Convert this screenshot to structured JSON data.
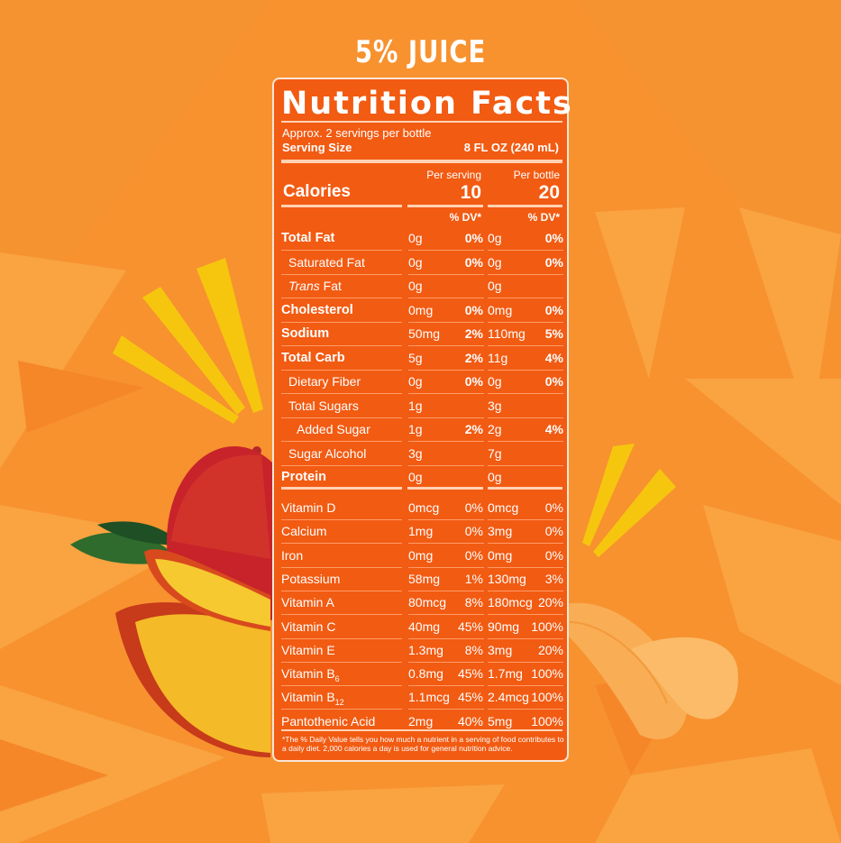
{
  "top_label": "5% JUICE",
  "panel": {
    "title": "Nutrition Facts",
    "servings": "Approx. 2 servings per bottle",
    "serving_size_label": "Serving Size",
    "serving_size_value": "8 FL OZ (240 mL)",
    "col_serving": "Per serving",
    "col_bottle": "Per bottle",
    "calories_label": "Calories",
    "calories_serving": "10",
    "calories_bottle": "20",
    "dv_header": "% DV*",
    "nutrients": [
      {
        "name": "Total Fat",
        "bold": true,
        "indent": 0,
        "ps": "0g",
        "pd": "0%",
        "bs": "0g",
        "bd": "0%"
      },
      {
        "name": "Saturated Fat",
        "bold": false,
        "indent": 1,
        "ps": "0g",
        "pd": "0%",
        "bs": "0g",
        "bd": "0%"
      },
      {
        "name_italic": "Trans",
        "name": " Fat",
        "bold": false,
        "indent": 1,
        "ps": "0g",
        "pd": "",
        "bs": "0g",
        "bd": ""
      },
      {
        "name": "Cholesterol",
        "bold": true,
        "indent": 0,
        "ps": "0mg",
        "pd": "0%",
        "bs": "0mg",
        "bd": "0%"
      },
      {
        "name": "Sodium",
        "bold": true,
        "indent": 0,
        "ps": "50mg",
        "pd": "2%",
        "bs": "110mg",
        "bd": "5%"
      },
      {
        "name": "Total Carb",
        "bold": true,
        "indent": 0,
        "ps": "5g",
        "pd": "2%",
        "bs": "11g",
        "bd": "4%"
      },
      {
        "name": "Dietary Fiber",
        "bold": false,
        "indent": 1,
        "ps": "0g",
        "pd": "0%",
        "bs": "0g",
        "bd": "0%"
      },
      {
        "name": "Total Sugars",
        "bold": false,
        "indent": 1,
        "ps": "1g",
        "pd": "",
        "bs": "3g",
        "bd": ""
      },
      {
        "name": "Added Sugar",
        "bold": false,
        "indent": 2,
        "ps": "1g",
        "pd": "2%",
        "bs": "2g",
        "bd": "4%"
      },
      {
        "name": "Sugar Alcohol",
        "bold": false,
        "indent": 1,
        "ps": "3g",
        "pd": "",
        "bs": "7g",
        "bd": ""
      },
      {
        "name": "Protein",
        "bold": true,
        "indent": 0,
        "ps": "0g",
        "pd": "",
        "bs": "0g",
        "bd": ""
      }
    ],
    "vitamins": [
      {
        "name": "Vitamin D",
        "ps": "0mcg",
        "pd": "0%",
        "bs": "0mcg",
        "bd": "0%"
      },
      {
        "name": "Calcium",
        "ps": "1mg",
        "pd": "0%",
        "bs": "3mg",
        "bd": "0%"
      },
      {
        "name": "Iron",
        "ps": "0mg",
        "pd": "0%",
        "bs": "0mg",
        "bd": "0%"
      },
      {
        "name": "Potassium",
        "ps": "58mg",
        "pd": "1%",
        "bs": "130mg",
        "bd": "3%"
      },
      {
        "name": "Vitamin A",
        "ps": "80mcg",
        "pd": "8%",
        "bs": "180mcg",
        "bd": "20%"
      },
      {
        "name": "Vitamin C",
        "ps": "40mg",
        "pd": "45%",
        "bs": "90mg",
        "bd": "100%"
      },
      {
        "name": "Vitamin E",
        "ps": "1.3mg",
        "pd": "8%",
        "bs": "3mg",
        "bd": "20%"
      },
      {
        "name": "Vitamin B",
        "sub": "6",
        "ps": "0.8mg",
        "pd": "45%",
        "bs": "1.7mg",
        "bd": "100%"
      },
      {
        "name": "Vitamin B",
        "sub": "12",
        "ps": "1.1mcg",
        "pd": "45%",
        "bs": "2.4mcg",
        "bd": "100%"
      },
      {
        "name": "Pantothenic Acid",
        "ps": "2mg",
        "pd": "40%",
        "bs": "5mg",
        "bd": "100%"
      }
    ],
    "footnote": "*The % Daily Value tells you how much a nutrient in a serving of food contributes to a daily diet. 2,000 calories a day is used for general nutrition advice."
  },
  "colors": {
    "background": "#f7922f",
    "panel": "#f25b12",
    "burst": "#f6c60f",
    "mango_red": "#c8232a",
    "mango_yellow": "#f3b51f",
    "orange_segment": "#f9b462"
  },
  "illustrations": [
    "mango-illustration",
    "orange-segments-illustration",
    "burst-lines"
  ]
}
